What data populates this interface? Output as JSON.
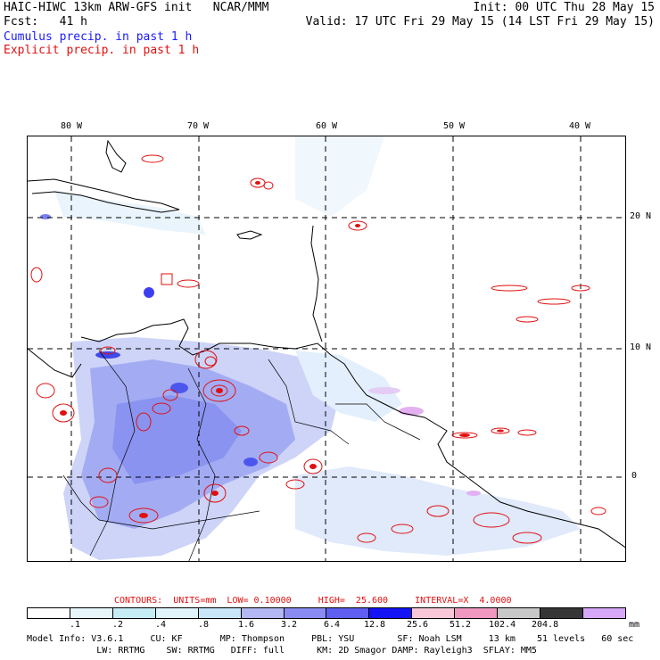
{
  "header": {
    "title": "HAIC-HIWC 13km ARW-GFS init   NCAR/MMM",
    "fcst": "Fcst:   41 h",
    "init": "Init: 00 UTC Thu 28 May 15",
    "valid": "Valid: 17 UTC Fri 29 May 15 (14 LST Fri 29 May 15)",
    "cumulus": "Cumulus precip. in past 1 h",
    "explicit": "Explicit precip. in past 1 h"
  },
  "map": {
    "lon_labels": [
      "80 W",
      "70 W",
      "60 W",
      "50 W",
      "40 W"
    ],
    "lat_labels": [
      "20 N",
      "10 N",
      "0"
    ]
  },
  "contours": {
    "label": "CONTOURS:  UNITS=mm  LOW= 0.10000     HIGH=  25.600     INTERVAL=X  4.0000"
  },
  "legend": {
    "ticks": [
      ".1",
      ".2",
      ".4",
      ".8",
      "1.6",
      "3.2",
      "6.4",
      "12.8",
      "25.6",
      "51.2",
      "102.4",
      "204.8"
    ],
    "units": "mm",
    "colors": [
      "#ffffff",
      "#e6f6fb",
      "#c6ecf5",
      "#dff5fb",
      "#c8e6f8",
      "#b3b8f3",
      "#8a8cf3",
      "#5e5ef0",
      "#1414f5",
      "#f8c8d8",
      "#f098c0",
      "#c8c8c8",
      "#363636",
      "#d7a8f8"
    ]
  },
  "model_info": {
    "line1": "Model Info: V3.6.1     CU: KF       MP: Thompson     PBL: YSU        SF: Noah LSM     13 km    51 levels   60 sec",
    "line2": "             LW: RRTMG    SW: RRTMG   DIFF: full      KM: 2D Smagor DAMP: Rayleigh3  SFLAY: MM5"
  }
}
